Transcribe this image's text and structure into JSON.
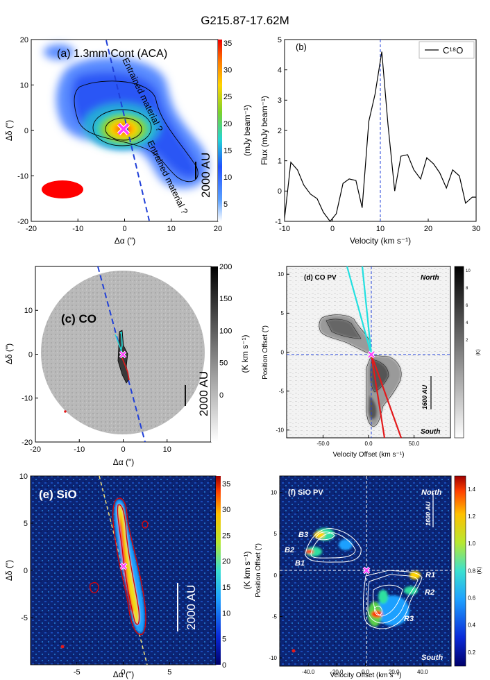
{
  "figure_title": "G215.87-17.62M",
  "colors": {
    "contour": "#000000",
    "dashed_axis": "#1f3fd8",
    "redshift": "#e31a1c",
    "blueshift": "#22e0e0",
    "star": "#ff3cff",
    "sio_bg": "#0a1f6e"
  },
  "chart_data": [
    {
      "panel": "a",
      "type": "heatmap",
      "title": "(a) 1.3mm Cont (ACA)",
      "xlabel": "Δα (\")",
      "ylabel": "Δδ (\")",
      "xlim": [
        -20,
        20
      ],
      "ylim": [
        -20,
        20
      ],
      "xticks": [
        "-20",
        "-10",
        "0",
        "10",
        "20"
      ],
      "yticks": [
        "20",
        "10",
        "0",
        "-10",
        "-20"
      ],
      "colorbar": {
        "label": "(mJy beam⁻¹)",
        "ticks": [
          "35",
          "30",
          "25",
          "20",
          "15",
          "10",
          "5"
        ],
        "range": [
          0,
          36
        ]
      },
      "annotations": [
        "Entrained material ?",
        "Entrained material ?"
      ],
      "scale_bar": "2000 AU"
    },
    {
      "panel": "b",
      "type": "line",
      "title": "(b)",
      "xlabel": "Velocity  (km s⁻¹)",
      "ylabel": "Flux (mJy beam⁻¹)",
      "xlim": [
        -10,
        30
      ],
      "ylim": [
        -1,
        5
      ],
      "xticks": [
        "-10",
        "0",
        "10",
        "20",
        "30"
      ],
      "yticks": [
        "5",
        "4",
        "3",
        "2",
        "1",
        "0",
        "-1"
      ],
      "legend": "C¹⁸O",
      "legend_position": "top-right",
      "vline": 10,
      "series": [
        {
          "name": "C18O",
          "x": [
            -10,
            -8.7,
            -7.3,
            -6,
            -4.6,
            -3.2,
            -1.9,
            -0.5,
            0.8,
            2.2,
            3.5,
            4.9,
            6.2,
            7.6,
            8.9,
            10.3,
            11.6,
            13,
            14.3,
            15.7,
            17,
            18.4,
            19.7,
            21.1,
            22.4,
            23.8,
            25.1,
            26.5,
            27.8,
            29.2,
            30
          ],
          "values": [
            -0.9,
            0.95,
            0.7,
            0.2,
            -0.1,
            -0.25,
            -0.7,
            -1.1,
            -0.75,
            0.25,
            0.4,
            0.35,
            -0.55,
            2.3,
            3.2,
            4.6,
            2.2,
            0.0,
            1.15,
            1.2,
            0.7,
            0.4,
            1.1,
            0.9,
            0.6,
            0.1,
            0.7,
            0.5,
            -0.4,
            -0.2,
            -0.2
          ]
        }
      ]
    },
    {
      "panel": "c",
      "type": "heatmap",
      "title": "(c) CO",
      "xlabel": "Δα (\")",
      "ylabel": "Δδ (\")",
      "xlim": [
        -20,
        20
      ],
      "ylim": [
        -20,
        20
      ],
      "xticks": [
        "-20",
        "-10",
        "0",
        "10"
      ],
      "yticks": [
        "10",
        "0",
        "-10",
        "-20"
      ],
      "colorbar": {
        "label": "(K km s⁻¹)",
        "ticks": [
          "200",
          "150",
          "100",
          "50",
          "0"
        ]
      },
      "scale_bar": "2000 AU"
    },
    {
      "panel": "d",
      "type": "heatmap",
      "title": "(d) CO PV",
      "xlabel": "Velocity Offset (km s⁻¹)",
      "ylabel": "Position Offset (\")",
      "xlim": [
        -90,
        90
      ],
      "ylim": [
        -11,
        11
      ],
      "xticks": [
        "-50.0",
        "0.0",
        "50.0"
      ],
      "yticks": [
        "10",
        "5",
        "0",
        "-5",
        "-10"
      ],
      "corner_labels": [
        "North",
        "South"
      ],
      "colorbar": {
        "label": "(K)",
        "ticks": [
          "10",
          "8",
          "6",
          "4",
          "2"
        ]
      },
      "scale_bar": "1600 AU"
    },
    {
      "panel": "e",
      "type": "heatmap",
      "title": "(e) SiO",
      "xlabel": "Δα (\")",
      "ylabel": "Δδ (\")",
      "xlim": [
        -10,
        10
      ],
      "ylim": [
        -10,
        10
      ],
      "xticks": [
        "-5",
        "0",
        "5"
      ],
      "yticks": [
        "10",
        "5",
        "0",
        "-5"
      ],
      "colorbar": {
        "label": "(K km s⁻¹)",
        "ticks": [
          "35",
          "30",
          "25",
          "20",
          "15",
          "10",
          "5",
          "0"
        ]
      },
      "scale_bar": "2000 AU"
    },
    {
      "panel": "f",
      "type": "heatmap",
      "title": "(f) SiO PV",
      "xlabel": "Velocity Offset (km s⁻¹)",
      "ylabel": "Position Offset (\")",
      "xlim": [
        -60,
        60
      ],
      "ylim": [
        -11,
        12
      ],
      "xticks": [
        "-40.0",
        "-20.0",
        "0.0",
        "20.0",
        "40.0"
      ],
      "yticks": [
        "10",
        "5",
        "0",
        "-5",
        "-10"
      ],
      "corner_labels": [
        "North",
        "South"
      ],
      "knots": [
        "B1",
        "B2",
        "B3",
        "R1",
        "R2",
        "R3"
      ],
      "colorbar": {
        "label": "(K)",
        "ticks": [
          "1.4",
          "1.2",
          "1.0",
          "0.8",
          "0.6",
          "0.4",
          "0.2"
        ]
      },
      "scale_bar": "1600 AU"
    }
  ]
}
